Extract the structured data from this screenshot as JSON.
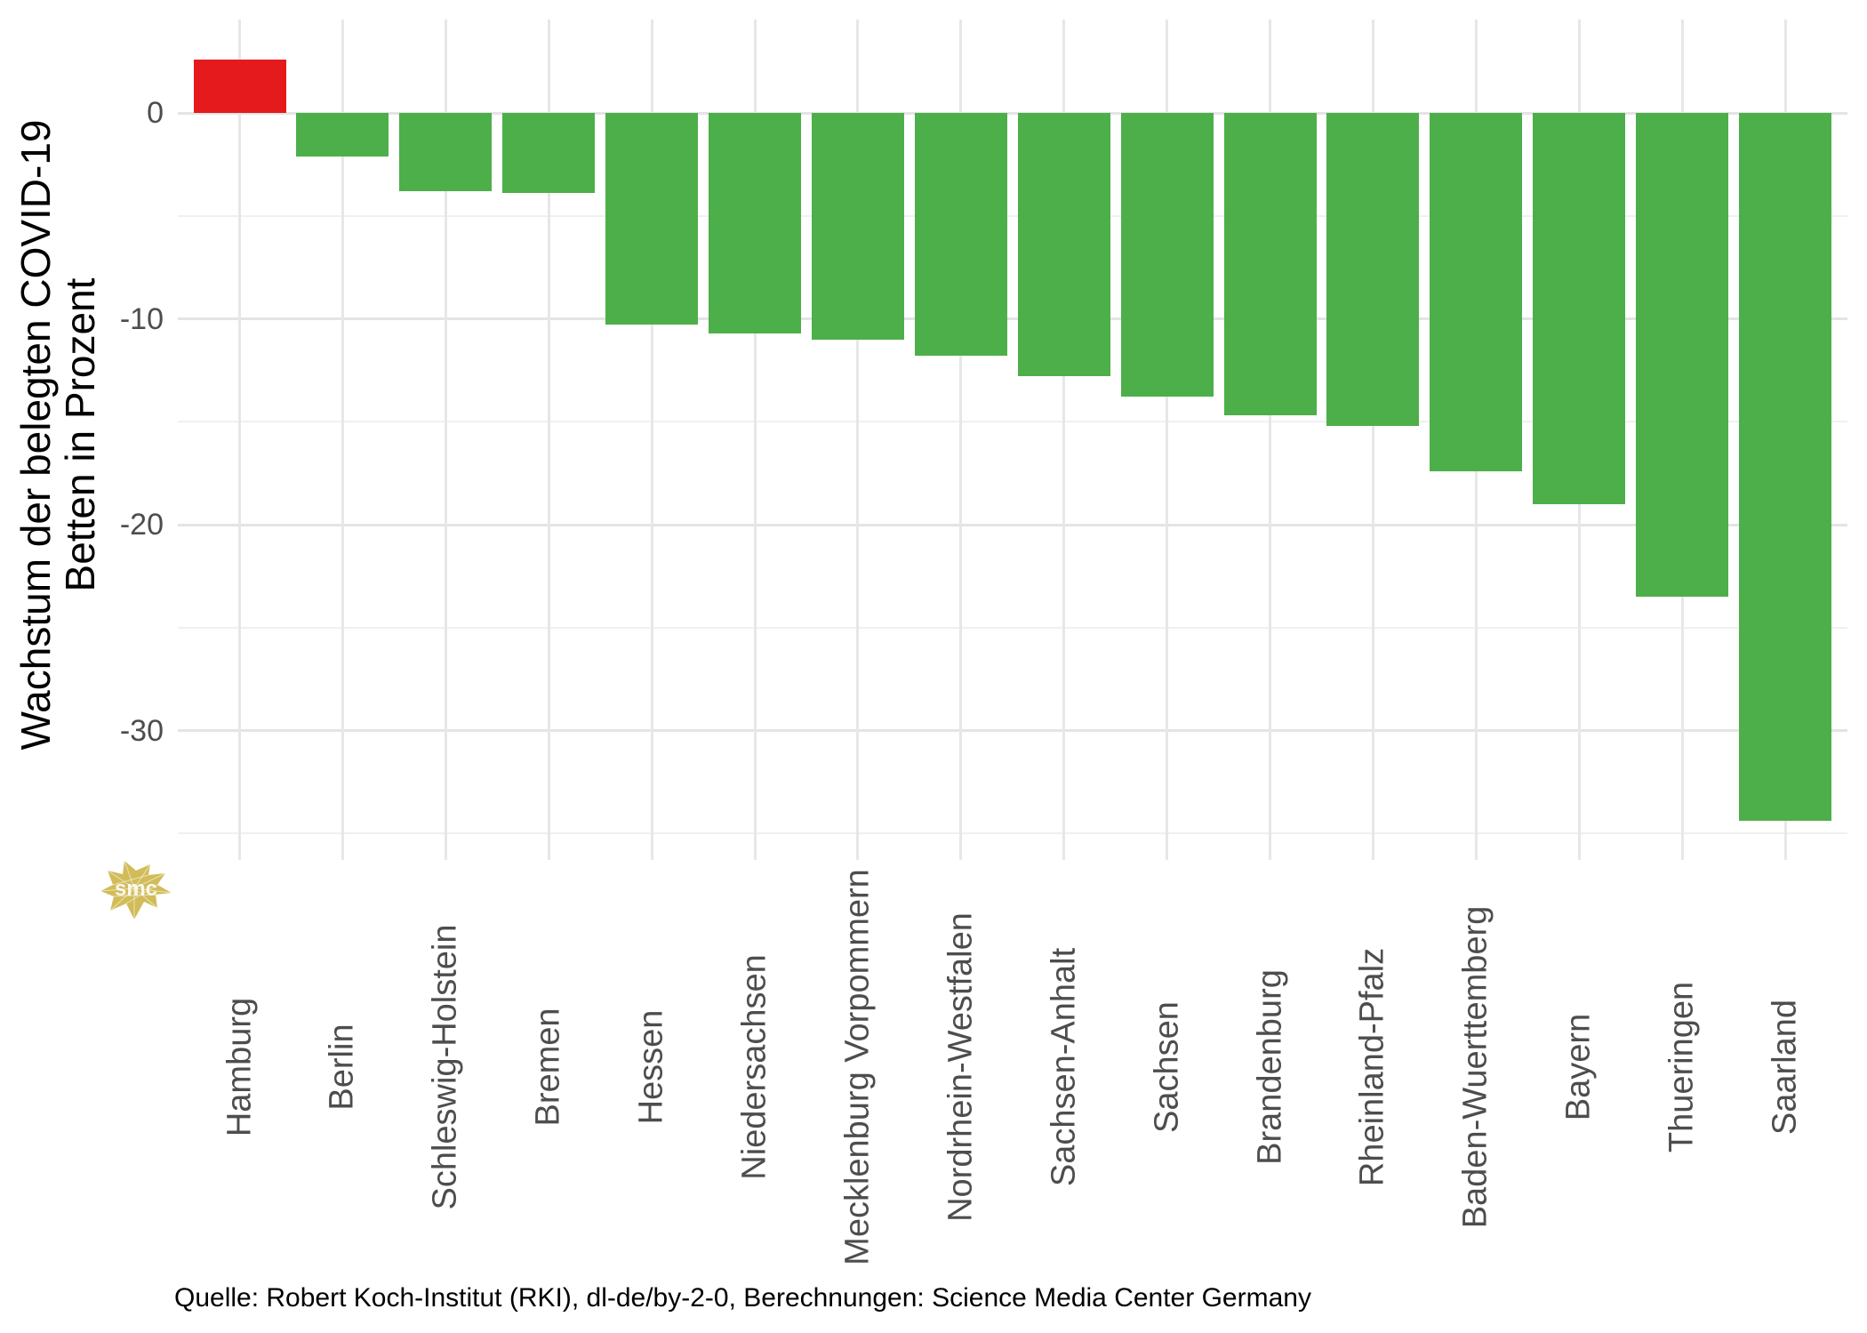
{
  "chart_data": {
    "type": "bar",
    "title": "",
    "ylabel_lines": [
      "Wachstum der belegten COVID-19",
      "Betten in Prozent"
    ],
    "xlabel": "",
    "categories": [
      "Hamburg",
      "Berlin",
      "Schleswig-Holstein",
      "Bremen",
      "Hessen",
      "Niedersachsen",
      "Mecklenburg Vorpommern",
      "Nordrhein-Westfalen",
      "Sachsen-Anhalt",
      "Sachsen",
      "Brandenburg",
      "Rheinland-Pfalz",
      "Baden-Wuerttemberg",
      "Bayern",
      "Thueringen",
      "Saarland"
    ],
    "values": [
      2.6,
      -2.1,
      -3.8,
      -3.9,
      -10.3,
      -10.7,
      -11.0,
      -11.8,
      -12.8,
      -13.8,
      -14.7,
      -15.2,
      -17.4,
      -19.0,
      -23.5,
      -34.4
    ],
    "y_ticks": [
      0,
      -10,
      -20,
      -30
    ],
    "y_minor_ticks": [
      -5,
      -15,
      -25,
      -35
    ],
    "ylim": [
      4.5,
      -36.2
    ],
    "grid": true,
    "legend": false,
    "bar_color_positive": "#e41a1c",
    "bar_color_negative": "#4daf4a",
    "grid_major_color": "#e4e4e4",
    "grid_minor_color": "#f0f0f0",
    "axis_text_color": "#4d4d4d"
  },
  "caption": "Quelle: Robert Koch-Institut (RKI), dl-de/by-2-0, Berechnungen: Science Media Center Germany",
  "logo": {
    "text": "smc",
    "color": "#d1bc59"
  }
}
